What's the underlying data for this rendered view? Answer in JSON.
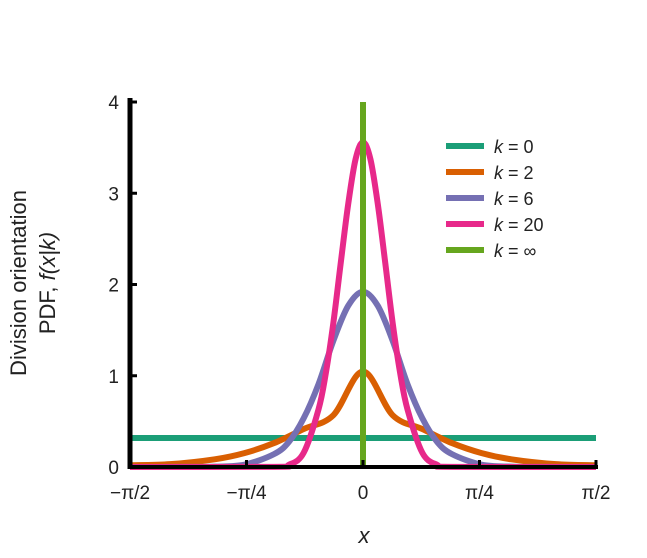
{
  "chart_data": {
    "type": "line",
    "title": "",
    "xlabel": "x",
    "ylabel_line1": "Division orientation",
    "ylabel_line2_prefix": "PDF, ",
    "ylabel_line2_italic": "f(x|k)",
    "xlim": [
      -1.5708,
      1.5708
    ],
    "ylim": [
      0,
      4
    ],
    "x_ticks": [
      {
        "value": -1.5708,
        "label": "−π/2"
      },
      {
        "value": -0.7854,
        "label": "−π/4"
      },
      {
        "value": 0,
        "label": "0"
      },
      {
        "value": 0.7854,
        "label": "π/4"
      },
      {
        "value": 1.5708,
        "label": "π/2"
      }
    ],
    "y_ticks": [
      {
        "value": 0,
        "label": "0"
      },
      {
        "value": 1,
        "label": "1"
      },
      {
        "value": 2,
        "label": "2"
      },
      {
        "value": 3,
        "label": "3"
      },
      {
        "value": 4,
        "label": "4"
      }
    ],
    "grid": false,
    "legend_placement": "top-right",
    "series": [
      {
        "name": "k = 0",
        "name_var": "k",
        "name_rest": " = 0",
        "color": "#1b9e77",
        "x": [
          -1.5708,
          -1.1781,
          -0.7854,
          -0.3927,
          0,
          0.3927,
          0.7854,
          1.1781,
          1.5708
        ],
        "y": [
          0.318,
          0.318,
          0.318,
          0.318,
          0.318,
          0.318,
          0.318,
          0.318,
          0.318
        ]
      },
      {
        "name": "k = 2",
        "name_var": "k",
        "name_rest": " = 2",
        "color": "#d95f02",
        "x": [
          -1.5708,
          -1.3,
          -1.0,
          -0.8,
          -0.6,
          -0.4,
          -0.2,
          0,
          0.2,
          0.4,
          0.6,
          0.8,
          1.0,
          1.3,
          1.5708
        ],
        "y": [
          0.019,
          0.031,
          0.084,
          0.152,
          0.262,
          0.416,
          0.567,
          1.046,
          0.567,
          0.416,
          0.262,
          0.152,
          0.084,
          0.031,
          0.019
        ]
      },
      {
        "name": "k = 6",
        "name_var": "k",
        "name_rest": " = 6",
        "color": "#7570b3",
        "x": [
          -1.5708,
          -1.2,
          -1.0,
          -0.8,
          -0.6,
          -0.5,
          -0.4,
          -0.3,
          -0.2,
          -0.1,
          0,
          0.1,
          0.2,
          0.3,
          0.4,
          0.5,
          0.6,
          0.8,
          1.0,
          1.2,
          1.5708
        ],
        "y": [
          0.0,
          0.001,
          0.004,
          0.025,
          0.141,
          0.275,
          0.534,
          0.908,
          1.383,
          1.766,
          1.921,
          1.766,
          1.383,
          0.908,
          0.534,
          0.275,
          0.141,
          0.025,
          0.004,
          0.001,
          0.0
        ]
      },
      {
        "name": "k = 20",
        "name_var": "k",
        "name_rest": " = 20",
        "color": "#e7298a",
        "x": [
          -1.5708,
          -0.6,
          -0.5,
          -0.4,
          -0.3,
          -0.25,
          -0.2,
          -0.15,
          -0.1,
          -0.05,
          0,
          0.05,
          0.1,
          0.15,
          0.2,
          0.25,
          0.3,
          0.4,
          0.5,
          0.6,
          1.5708
        ],
        "y": [
          0.0,
          0.002,
          0.024,
          0.156,
          0.631,
          1.034,
          1.578,
          2.237,
          2.879,
          3.374,
          3.56,
          3.374,
          2.879,
          2.237,
          1.578,
          1.034,
          0.631,
          0.156,
          0.024,
          0.002,
          0.0
        ]
      },
      {
        "name": "k = ∞",
        "name_var": "k",
        "name_rest": " = ∞",
        "color": "#66a61e",
        "x": [
          0,
          0
        ],
        "y": [
          0,
          4
        ]
      }
    ]
  }
}
